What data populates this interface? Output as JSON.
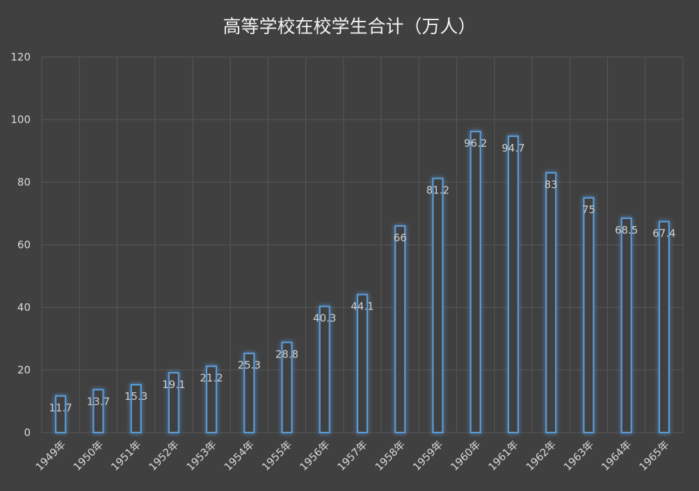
{
  "chart_data": {
    "type": "bar",
    "title": "高等学校在校学生合计（万人）",
    "categories": [
      "1949年",
      "1950年",
      "1951年",
      "1952年",
      "1953年",
      "1954年",
      "1955年",
      "1956年",
      "1957年",
      "1958年",
      "1959年",
      "1960年",
      "1961年",
      "1962年",
      "1963年",
      "1964年",
      "1965年"
    ],
    "values": [
      11.7,
      13.7,
      15.3,
      19.1,
      21.2,
      25.3,
      28.8,
      40.3,
      44.1,
      66,
      81.2,
      96.2,
      94.7,
      83,
      75,
      68.5,
      67.4
    ],
    "value_labels": [
      "11.7",
      "13.7",
      "15.3",
      "19.1",
      "21.2",
      "25.3",
      "28.8",
      "40.3",
      "44.1",
      "66",
      "81.2",
      "96.2",
      "94.7",
      "83",
      "75",
      "68.5",
      "67.4"
    ],
    "xlabel": "",
    "ylabel": "",
    "ylim": [
      0,
      120
    ],
    "yticks": [
      "0",
      "20",
      "40",
      "60",
      "80",
      "100",
      "120"
    ],
    "grid": true,
    "legend": "none",
    "colors": {
      "background": "#404040",
      "bar_edge": "#5b9bd5",
      "bar_fill": "#404040",
      "bar_glow": "#2f6fb0",
      "grid": "#595959",
      "text": "#d9d9d9"
    }
  }
}
